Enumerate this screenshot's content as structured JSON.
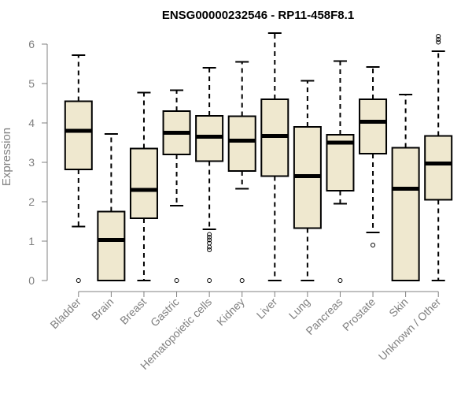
{
  "chart_data": {
    "type": "boxplot",
    "title": "ENSG00000232546 - RP11-458F8.1",
    "ylabel": "Expression",
    "xlabel": "",
    "ylim": [
      0,
      6.3
    ],
    "yticks": [
      0,
      1,
      2,
      3,
      4,
      5,
      6
    ],
    "grid": false,
    "box_fill": "#efe8cf",
    "box_stroke": "#000000",
    "axis_color": "#808080",
    "categories": [
      "Bladder",
      "Brain",
      "Breast",
      "Gastric",
      "Hematopoietic cells",
      "Kidney",
      "Liver",
      "Lung",
      "Pancreas",
      "Prostate",
      "Skin",
      "Unknown / Other"
    ],
    "boxes": [
      {
        "whisker_low": 1.37,
        "q1": 2.82,
        "median": 3.8,
        "q3": 4.55,
        "whisker_high": 5.72,
        "outliers": [
          0.0
        ]
      },
      {
        "whisker_low": 0.0,
        "q1": 0.0,
        "median": 1.03,
        "q3": 1.75,
        "whisker_high": 3.72,
        "outliers": []
      },
      {
        "whisker_low": 0.0,
        "q1": 1.58,
        "median": 2.3,
        "q3": 3.35,
        "whisker_high": 4.77,
        "outliers": []
      },
      {
        "whisker_low": 1.9,
        "q1": 3.2,
        "median": 3.75,
        "q3": 4.3,
        "whisker_high": 4.83,
        "outliers": [
          0.0
        ]
      },
      {
        "whisker_low": 1.3,
        "q1": 3.03,
        "median": 3.65,
        "q3": 4.18,
        "whisker_high": 5.4,
        "outliers": [
          0.0,
          0.78,
          0.85,
          0.95,
          1.03,
          1.1,
          1.17
        ]
      },
      {
        "whisker_low": 2.33,
        "q1": 2.78,
        "median": 3.55,
        "q3": 4.17,
        "whisker_high": 5.55,
        "outliers": [
          0.0
        ]
      },
      {
        "whisker_low": 0.0,
        "q1": 2.65,
        "median": 3.67,
        "q3": 4.6,
        "whisker_high": 6.28,
        "outliers": []
      },
      {
        "whisker_low": 0.0,
        "q1": 1.33,
        "median": 2.65,
        "q3": 3.9,
        "whisker_high": 5.07,
        "outliers": []
      },
      {
        "whisker_low": 1.95,
        "q1": 2.28,
        "median": 3.5,
        "q3": 3.7,
        "whisker_high": 5.57,
        "outliers": [
          0.0
        ]
      },
      {
        "whisker_low": 1.22,
        "q1": 3.22,
        "median": 4.03,
        "q3": 4.6,
        "whisker_high": 5.42,
        "outliers": [
          0.9
        ]
      },
      {
        "whisker_low": 0.0,
        "q1": 0.0,
        "median": 2.33,
        "q3": 3.37,
        "whisker_high": 4.72,
        "outliers": []
      },
      {
        "whisker_low": 0.0,
        "q1": 2.05,
        "median": 2.97,
        "q3": 3.67,
        "whisker_high": 5.82,
        "outliers": [
          6.05,
          6.12,
          6.2
        ]
      }
    ]
  }
}
